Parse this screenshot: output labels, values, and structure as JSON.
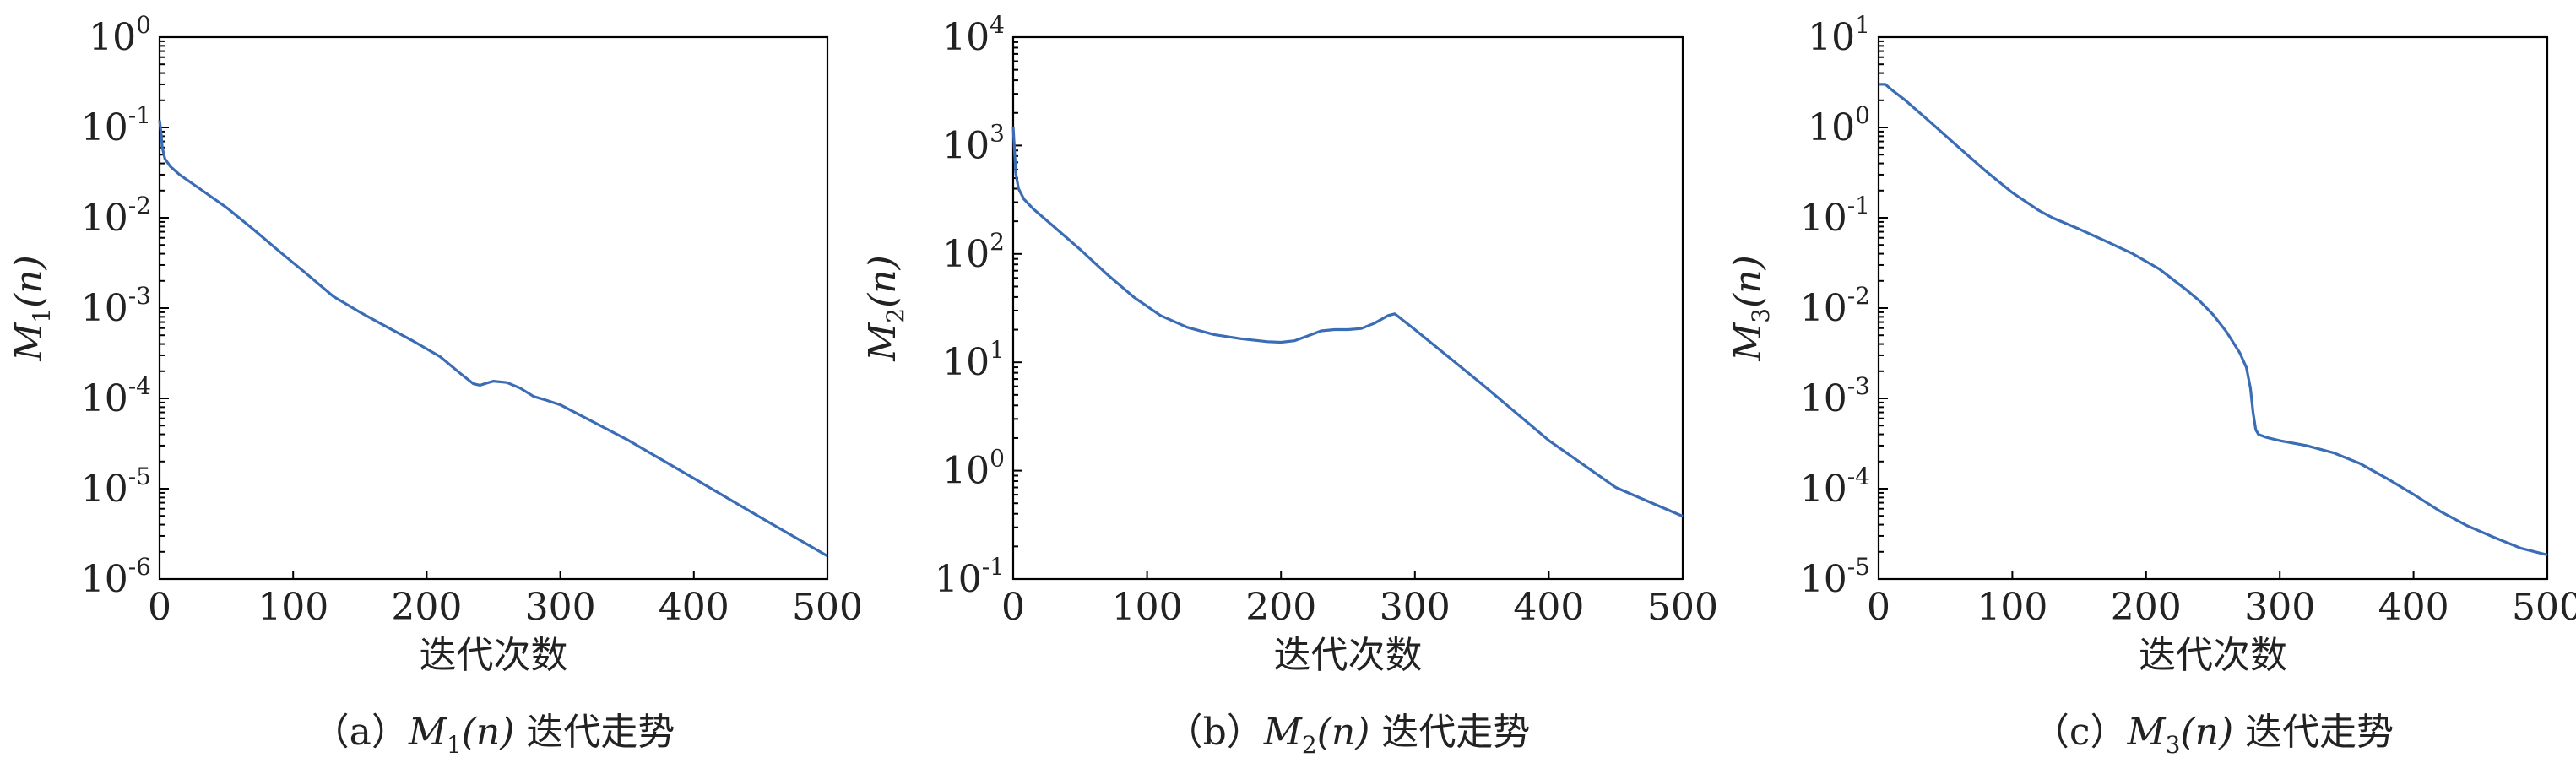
{
  "chart_data": [
    {
      "type": "line",
      "panel": "a",
      "caption": "（a）M1(n) 迭代走势",
      "caption_parts": {
        "prefix": "（a）",
        "symbol": "M",
        "sub": "1",
        "arg": "(n)",
        "suffix": " 迭代走势"
      },
      "xlabel": "迭代次数",
      "ylabel": "M1(n)",
      "ylabel_parts": {
        "symbol": "M",
        "sub": "1",
        "arg": "(n)"
      },
      "y_scale": "log",
      "xlim": [
        0,
        500
      ],
      "ylim": [
        1e-06,
        1
      ],
      "x_ticks": [
        "0",
        "100",
        "200",
        "300",
        "400",
        "500"
      ],
      "y_ticks": [
        {
          "base": "10",
          "exp": "-6"
        },
        {
          "base": "10",
          "exp": "-5"
        },
        {
          "base": "10",
          "exp": "-4"
        },
        {
          "base": "10",
          "exp": "-3"
        },
        {
          "base": "10",
          "exp": "-2"
        },
        {
          "base": "10",
          "exp": "-1"
        },
        {
          "base": "10",
          "exp": "0"
        }
      ],
      "series": [
        {
          "x": [
            0,
            1,
            2,
            4,
            8,
            15,
            30,
            50,
            70,
            90,
            110,
            130,
            150,
            170,
            190,
            210,
            225,
            235,
            240,
            245,
            250,
            260,
            270,
            280,
            290,
            300,
            350,
            400,
            450,
            500
          ],
          "y": [
            0.12,
            0.09,
            0.06,
            0.045,
            0.037,
            0.03,
            0.021,
            0.013,
            0.0075,
            0.0042,
            0.0024,
            0.00135,
            0.0009,
            0.00062,
            0.00043,
            0.00029,
            0.00019,
            0.000145,
            0.00014,
            0.000148,
            0.000155,
            0.00015,
            0.00013,
            0.000105,
            9.5e-05,
            8.5e-05,
            3.5e-05,
            1.3e-05,
            4.8e-06,
            1.8e-06
          ]
        }
      ]
    },
    {
      "type": "line",
      "panel": "b",
      "caption": "（b）M2(n) 迭代走势",
      "caption_parts": {
        "prefix": "（b）",
        "symbol": "M",
        "sub": "2",
        "arg": "(n)",
        "suffix": " 迭代走势"
      },
      "xlabel": "迭代次数",
      "ylabel": "M2(n)",
      "ylabel_parts": {
        "symbol": "M",
        "sub": "2",
        "arg": "(n)"
      },
      "y_scale": "log",
      "xlim": [
        0,
        500
      ],
      "ylim": [
        0.1,
        10000
      ],
      "x_ticks": [
        "0",
        "100",
        "200",
        "300",
        "400",
        "500"
      ],
      "y_ticks": [
        {
          "base": "10",
          "exp": "-1"
        },
        {
          "base": "10",
          "exp": "0"
        },
        {
          "base": "10",
          "exp": "1"
        },
        {
          "base": "10",
          "exp": "2"
        },
        {
          "base": "10",
          "exp": "3"
        },
        {
          "base": "10",
          "exp": "4"
        }
      ],
      "series": [
        {
          "x": [
            0,
            1,
            2,
            4,
            8,
            15,
            30,
            50,
            70,
            90,
            110,
            130,
            150,
            170,
            190,
            200,
            210,
            220,
            230,
            240,
            250,
            260,
            270,
            280,
            285,
            300,
            350,
            400,
            450,
            500
          ],
          "y": [
            1500,
            900,
            550,
            400,
            320,
            260,
            180,
            110,
            65,
            40,
            27,
            21,
            18,
            16.5,
            15.5,
            15.3,
            15.8,
            17.5,
            19.5,
            20,
            20,
            20.5,
            23,
            27,
            28,
            20,
            6.3,
            1.9,
            0.7,
            0.38
          ]
        }
      ]
    },
    {
      "type": "line",
      "panel": "c",
      "caption": "（c）M3(n) 迭代走势",
      "caption_parts": {
        "prefix": "（c）",
        "symbol": "M",
        "sub": "3",
        "arg": "(n)",
        "suffix": " 迭代走势"
      },
      "xlabel": "迭代次数",
      "ylabel": "M3(n)",
      "ylabel_parts": {
        "symbol": "M",
        "sub": "3",
        "arg": "(n)"
      },
      "y_scale": "log",
      "xlim": [
        0,
        500
      ],
      "ylim": [
        1e-05,
        10
      ],
      "x_ticks": [
        "0",
        "100",
        "200",
        "300",
        "400",
        "500"
      ],
      "y_ticks": [
        {
          "base": "10",
          "exp": "-5"
        },
        {
          "base": "10",
          "exp": "-4"
        },
        {
          "base": "10",
          "exp": "-3"
        },
        {
          "base": "10",
          "exp": "-2"
        },
        {
          "base": "10",
          "exp": "-1"
        },
        {
          "base": "10",
          "exp": "0"
        },
        {
          "base": "10",
          "exp": "1"
        }
      ],
      "series": [
        {
          "x": [
            0,
            5,
            10,
            20,
            40,
            60,
            80,
            100,
            120,
            130,
            150,
            170,
            190,
            210,
            230,
            240,
            250,
            260,
            270,
            275,
            278,
            280,
            282,
            284,
            290,
            300,
            320,
            340,
            360,
            380,
            400,
            420,
            440,
            460,
            480,
            500
          ],
          "y": [
            3.0,
            3.0,
            2.6,
            2.0,
            1.1,
            0.6,
            0.33,
            0.19,
            0.12,
            0.1,
            0.075,
            0.055,
            0.04,
            0.027,
            0.016,
            0.012,
            0.0085,
            0.0055,
            0.0032,
            0.0022,
            0.0013,
            0.0007,
            0.00045,
            0.0004,
            0.00037,
            0.00034,
            0.0003,
            0.00025,
            0.00019,
            0.00013,
            8.65e-05,
            5.6e-05,
            3.9e-05,
            2.9e-05,
            2.2e-05,
            1.85e-05
          ]
        }
      ]
    }
  ]
}
